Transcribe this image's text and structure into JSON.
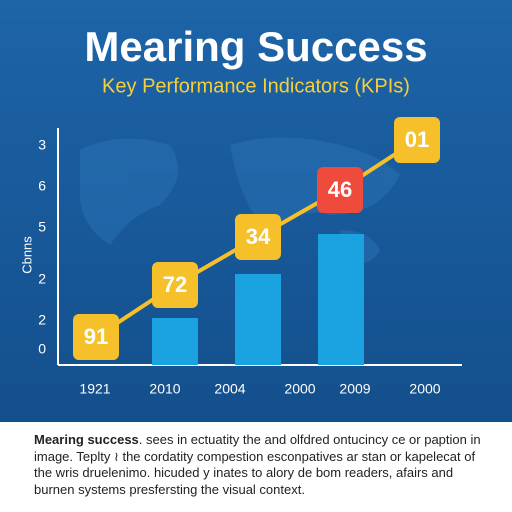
{
  "header": {
    "title": "Mearing Success",
    "subtitle": "Key Performance Indicators (KPIs)"
  },
  "chart": {
    "y_axis_label": "Cbnns",
    "y_labels": [
      "3",
      "6",
      "5",
      "2",
      "2",
      "0"
    ],
    "x_labels": [
      "1921",
      "2010",
      "2004",
      "2000",
      "2009",
      "2000"
    ],
    "markers": [
      "91",
      "72",
      "34",
      "46",
      "01"
    ]
  },
  "caption": {
    "lead": "Mearing success",
    "body": ". sees in ectuatity the and olfdred ontucincy ce or paption in image. Teplty ≀ the cordatity compestion esconpatives ar stan or kapelecat of the wris druelenimo. hicuded y inates to alory de bom readers, afairs and burnen systems presfersting the visual context."
  }
}
